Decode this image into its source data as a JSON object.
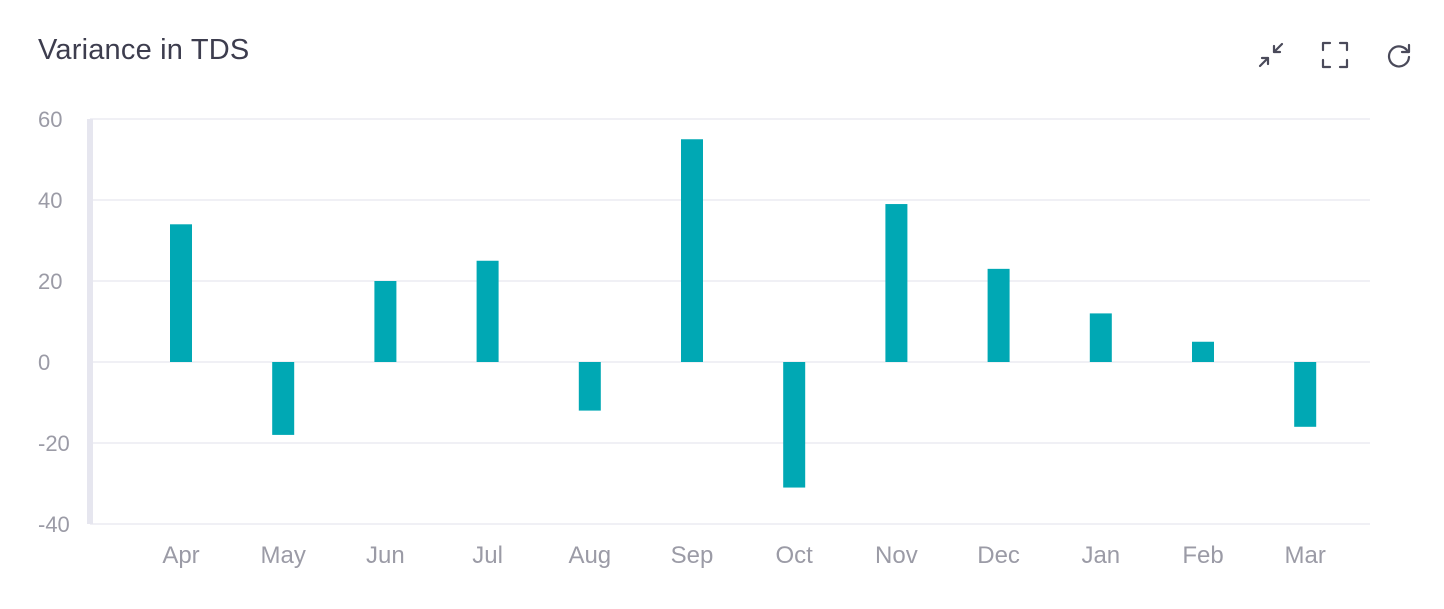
{
  "card": {
    "title": "Variance in TDS"
  },
  "toolbar": {
    "buttons": [
      {
        "name": "collapse-button",
        "icon": "collapse-icon"
      },
      {
        "name": "fullscreen-button",
        "icon": "fullscreen-icon"
      },
      {
        "name": "refresh-button",
        "icon": "refresh-icon"
      }
    ]
  },
  "colors": {
    "bar": "#00a8b4",
    "grid": "#ececf2",
    "axis": "#e6e6ef",
    "tick_text": "#9b9ba6",
    "title_text": "#3d3d4e",
    "icon": "#4a4a5a"
  },
  "chart_data": {
    "type": "bar",
    "title": "Variance in TDS",
    "xlabel": "",
    "ylabel": "",
    "categories": [
      "Apr",
      "May",
      "Jun",
      "Jul",
      "Aug",
      "Sep",
      "Oct",
      "Nov",
      "Dec",
      "Jan",
      "Feb",
      "Mar"
    ],
    "values": [
      34,
      -18,
      20,
      25,
      -12,
      55,
      -31,
      39,
      23,
      12,
      5,
      -16
    ],
    "ylim": [
      -40,
      60
    ],
    "yticks": [
      60,
      40,
      20,
      0,
      -20,
      -40
    ],
    "grid": true,
    "legend": "none"
  }
}
